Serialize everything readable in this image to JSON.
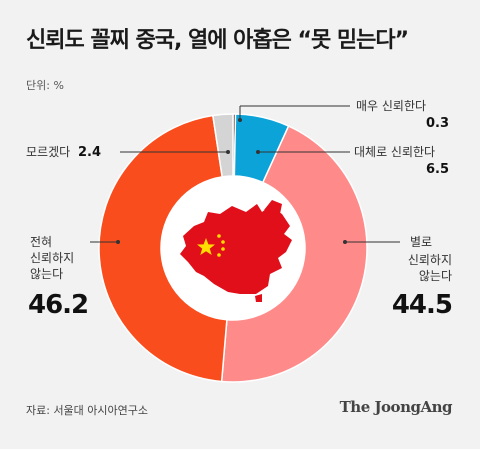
{
  "header": {
    "title": "신뢰도 꼴찌 중국, 열에 아홉은 “못 믿는다”",
    "unit": "단위: %"
  },
  "chart_data": {
    "type": "pie",
    "donut": true,
    "categories": [
      "매우 신뢰한다",
      "대체로 신뢰한다",
      "별로 신뢰하지 않는다",
      "전혀 신뢰하지 않는다",
      "모르겠다"
    ],
    "values": [
      0.3,
      6.5,
      44.5,
      46.2,
      2.4
    ],
    "colors": [
      "#2b2b2b",
      "#0ca3d8",
      "#ff8a8a",
      "#fa4d1d",
      "#d4d4d4"
    ],
    "labels": {
      "very_trust": {
        "text": "매우 신뢰한다",
        "value": "0.3"
      },
      "somewhat_trust": {
        "text": "대체로 신뢰한다",
        "value": "6.5"
      },
      "not_much": {
        "line1": "별로",
        "line2": "신뢰하지",
        "line3": "않는다",
        "value": "44.5"
      },
      "not_at_all": {
        "line1": "전혀",
        "line2": "신뢰하지",
        "line3": "않는다",
        "value": "46.2"
      },
      "dont_know": {
        "text": "모르겠다",
        "value": "2.4"
      }
    }
  },
  "footer": {
    "source": "자료: 서울대 아시아연구소",
    "brand": "The JoongAng"
  }
}
